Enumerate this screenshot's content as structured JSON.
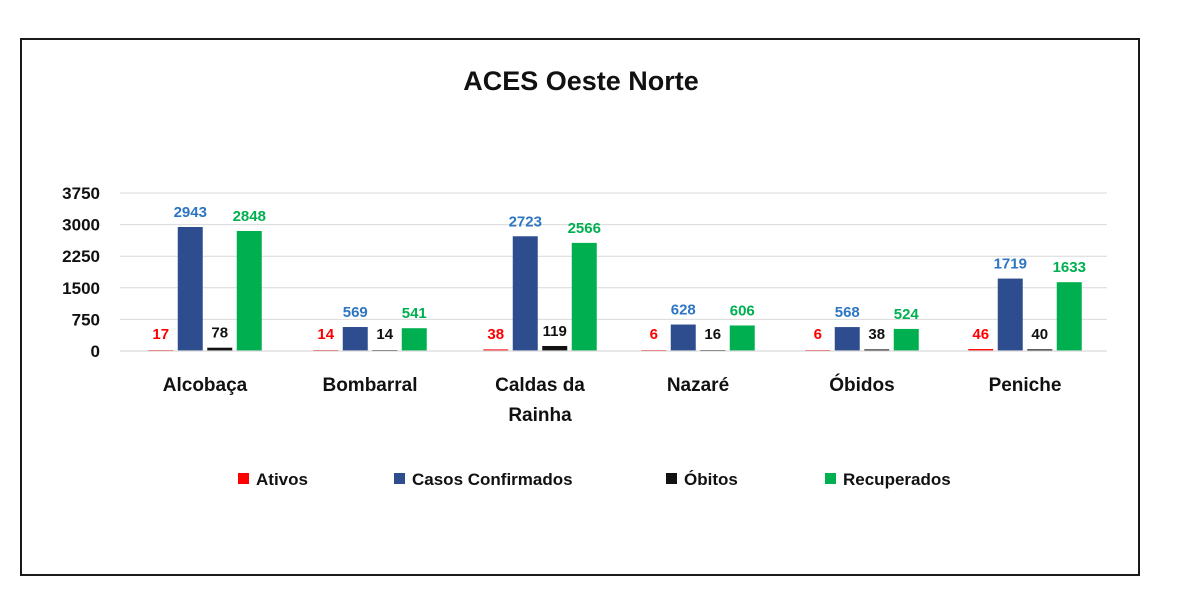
{
  "chart_data": {
    "type": "bar",
    "title": "ACES Oeste Norte",
    "xlabel": "",
    "ylabel": "",
    "categories": [
      [
        "Alcobaça"
      ],
      [
        "Bombarral"
      ],
      [
        "Caldas da",
        "Rainha"
      ],
      [
        "Nazaré"
      ],
      [
        "Óbidos"
      ],
      [
        "Peniche"
      ]
    ],
    "y_ticks": [
      "0",
      "750",
      "1500",
      "2250",
      "3000",
      "3750"
    ],
    "ylim": [
      0,
      3750
    ],
    "grid": true,
    "legend_position": "bottom",
    "series": [
      {
        "name": "Ativos",
        "color": "#ff0000",
        "label_color": "#ff0000",
        "values": [
          17,
          14,
          38,
          6,
          6,
          46
        ]
      },
      {
        "name": "Casos Confirmados",
        "color": "#2e4d8f",
        "label_color": "#2e75c4",
        "values": [
          2943,
          569,
          2723,
          628,
          568,
          1719
        ]
      },
      {
        "name": "Óbitos",
        "color": "#111111",
        "label_color": "#111111",
        "values": [
          78,
          14,
          119,
          16,
          38,
          40
        ]
      },
      {
        "name": "Recuperados",
        "color": "#00b050",
        "label_color": "#00b050",
        "values": [
          2848,
          541,
          2566,
          606,
          524,
          1633
        ]
      }
    ]
  }
}
